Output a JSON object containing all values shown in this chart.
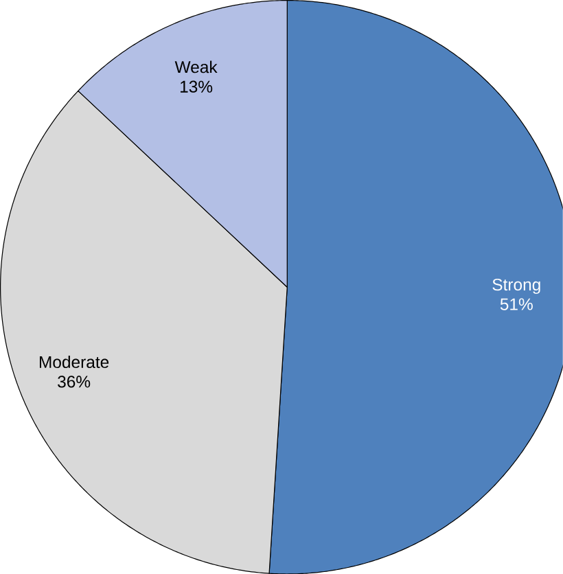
{
  "chart_data": {
    "type": "pie",
    "categories": [
      "Strong",
      "Moderate",
      "Weak"
    ],
    "values": [
      51,
      36,
      13
    ],
    "value_labels": [
      "51%",
      "36%",
      "13%"
    ],
    "colors": [
      "#4f81bd",
      "#d9d9d9",
      "#b3bfe5"
    ]
  }
}
